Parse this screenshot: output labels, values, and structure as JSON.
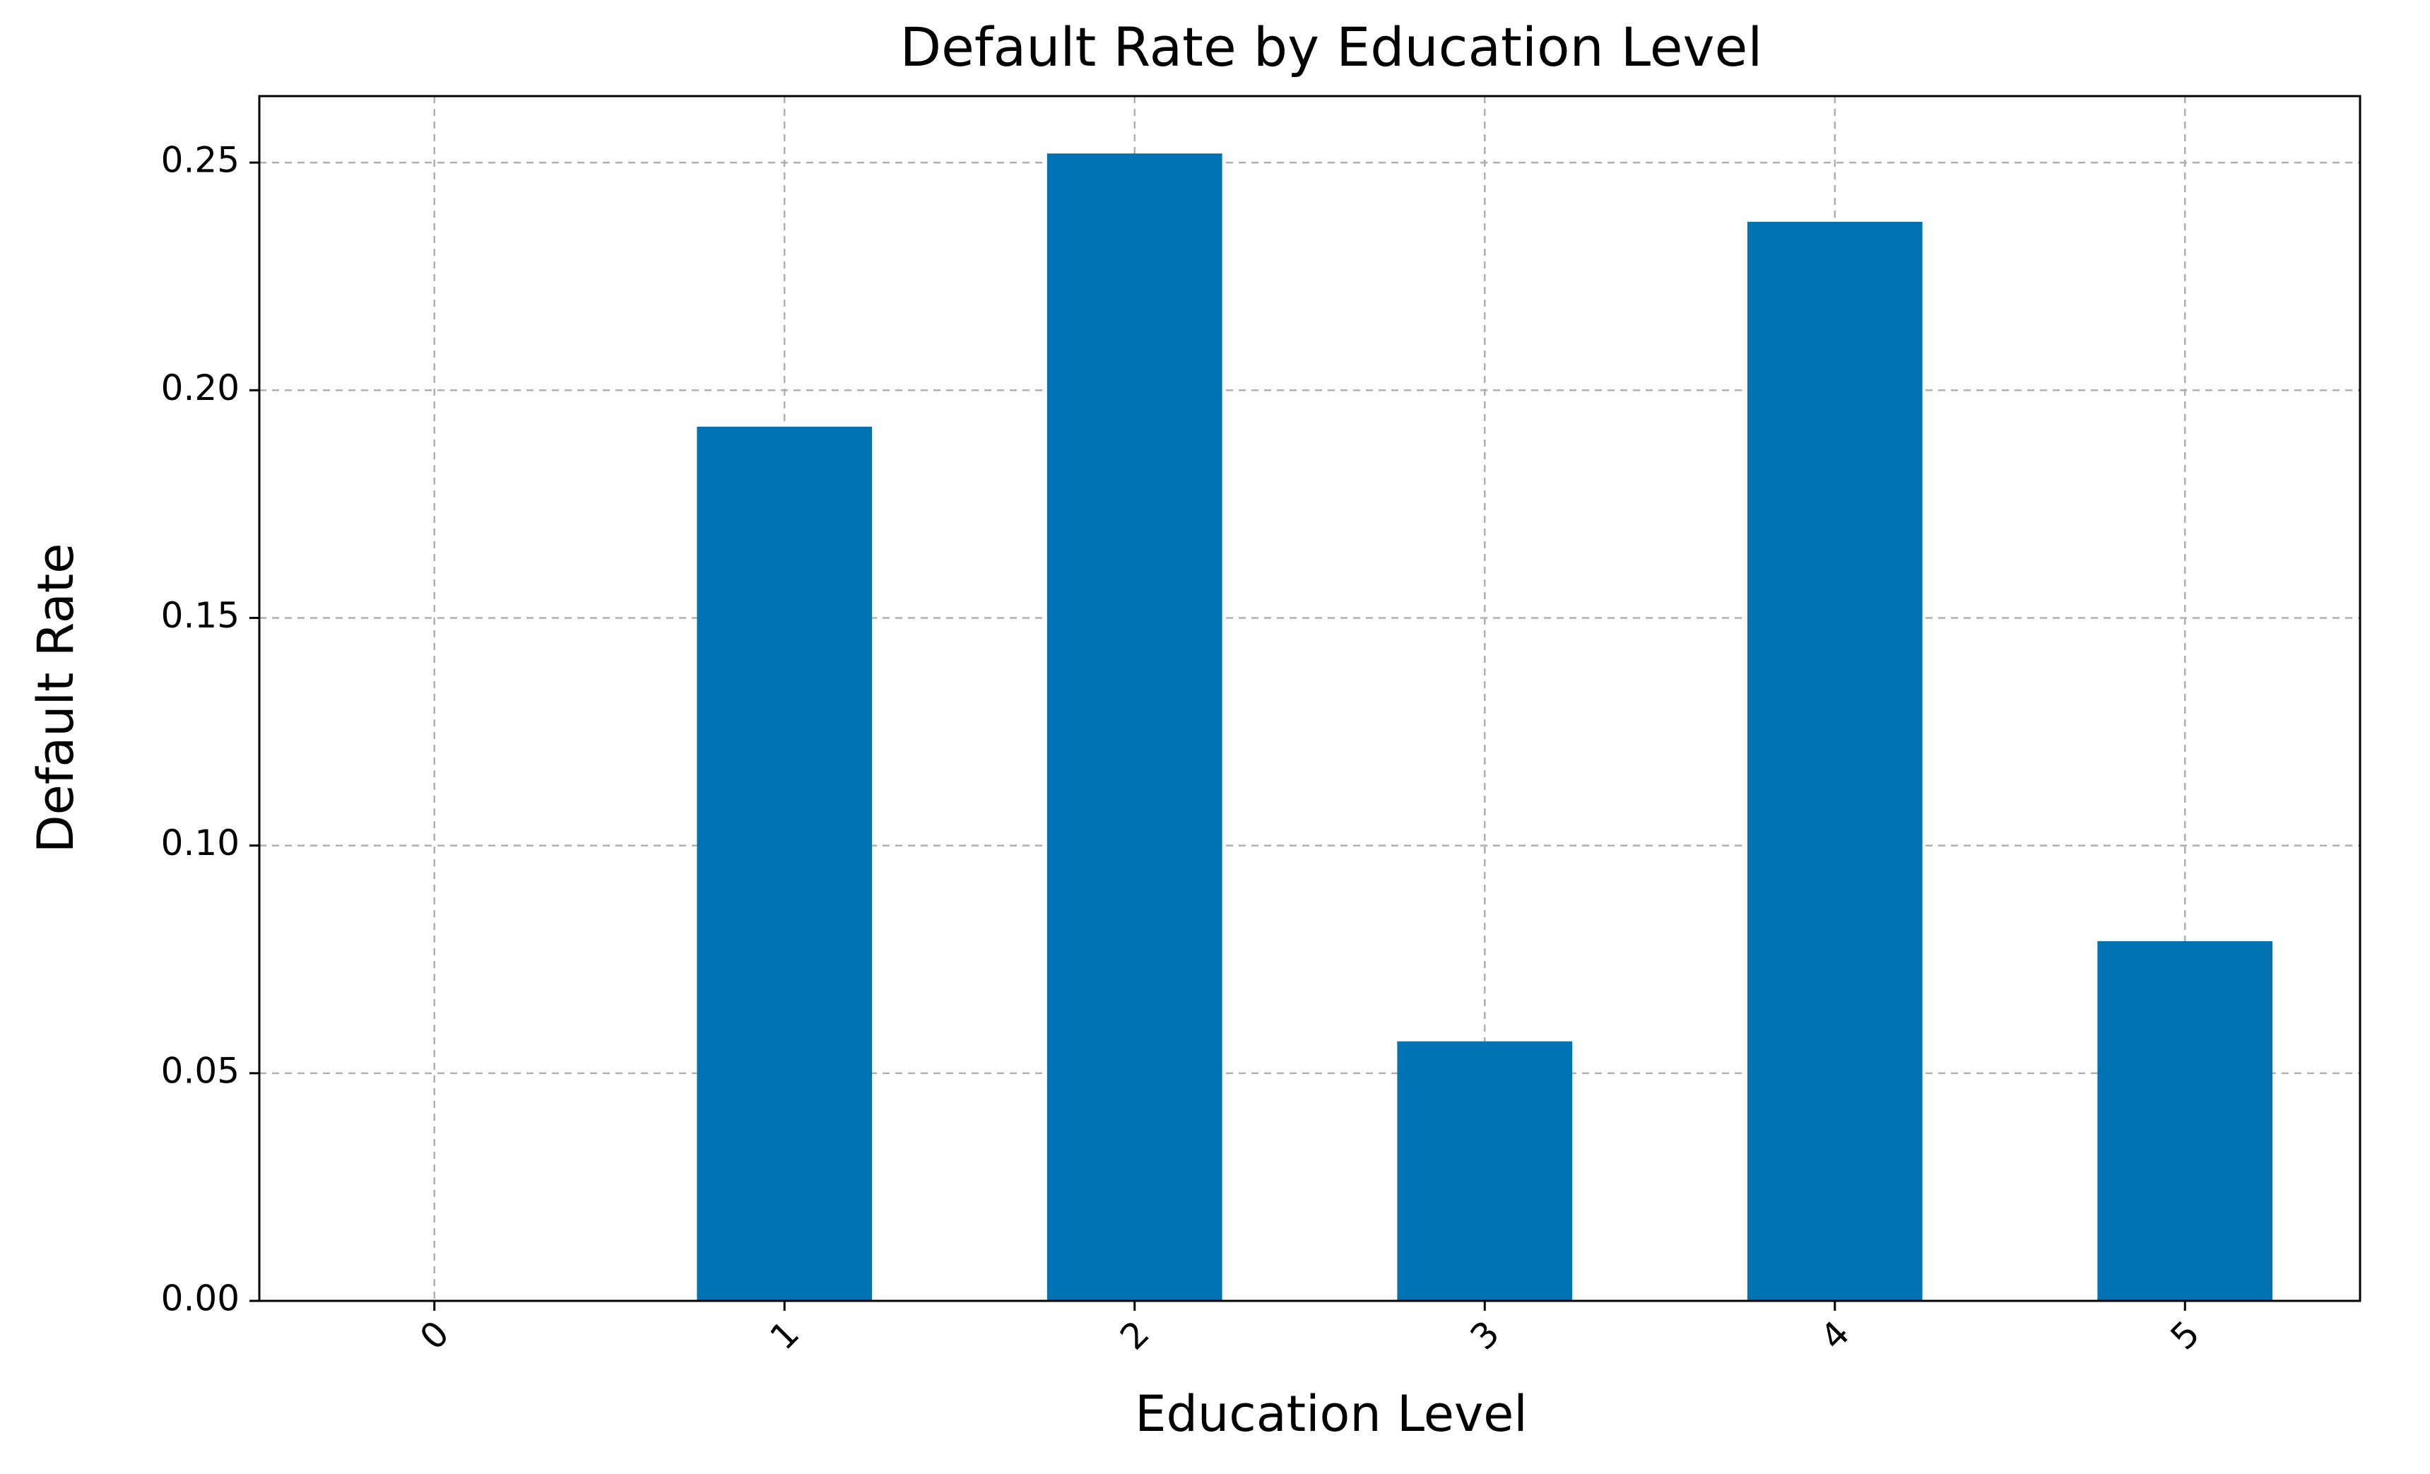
{
  "chart_data": {
    "type": "bar",
    "title": "Default Rate by Education Level",
    "x_label": "Education Level",
    "y_label": "Default Rate",
    "categories": [
      "0",
      "1",
      "2",
      "3",
      "4",
      "5"
    ],
    "values": [
      0,
      0.192,
      0.252,
      0.057,
      0.237,
      0.079
    ],
    "color": "#0173b2",
    "ylim": [
      0,
      0.2646
    ],
    "yticks": [
      {
        "value": 0,
        "label": "0.00"
      },
      {
        "value": 0.05,
        "label": "0.05"
      },
      {
        "value": 0.1,
        "label": "0.10"
      },
      {
        "value": 0.15,
        "label": "0.15"
      },
      {
        "value": 0.2,
        "label": "0.20"
      },
      {
        "value": 0.25,
        "label": "0.25"
      }
    ],
    "grid": true
  }
}
